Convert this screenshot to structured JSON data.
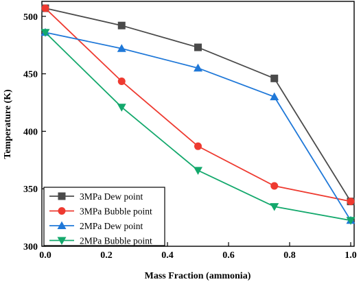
{
  "chart_data": {
    "type": "line",
    "title": "",
    "xlabel": "Mass Fraction (ammonia)",
    "ylabel": "Temperature (K)",
    "xlim": [
      0,
      1
    ],
    "ylim": [
      300,
      513
    ],
    "x_ticks": [
      0.0,
      0.2,
      0.4,
      0.6,
      0.8,
      1.0
    ],
    "x_tick_labels": [
      "0.0",
      "0.2",
      "0.4",
      "0.6",
      "0.8",
      "1.0"
    ],
    "y_ticks": [
      300,
      350,
      400,
      450,
      500
    ],
    "y_tick_labels": [
      "300",
      "350",
      "400",
      "450",
      "500"
    ],
    "grid": false,
    "legend_position": "bottom-left",
    "x": [
      0.0,
      0.25,
      0.5,
      0.75,
      1.0
    ],
    "series": [
      {
        "name": "3MPa Dew point",
        "marker": "square",
        "color": "#4a4a4a",
        "values": [
          507,
          492,
          473,
          446,
          339
        ]
      },
      {
        "name": "3MPa Bubble point",
        "marker": "circle",
        "color": "#ee3a30",
        "values": [
          507,
          443.5,
          387,
          352.5,
          339
        ]
      },
      {
        "name": "2MPa Dew point",
        "marker": "triangle-up",
        "color": "#1f78d8",
        "values": [
          486,
          472,
          455,
          430,
          322.5
        ]
      },
      {
        "name": "2MPa Bubble point",
        "marker": "triangle-down",
        "color": "#13a86c",
        "values": [
          486,
          421,
          366,
          334.5,
          322.5
        ]
      }
    ]
  }
}
